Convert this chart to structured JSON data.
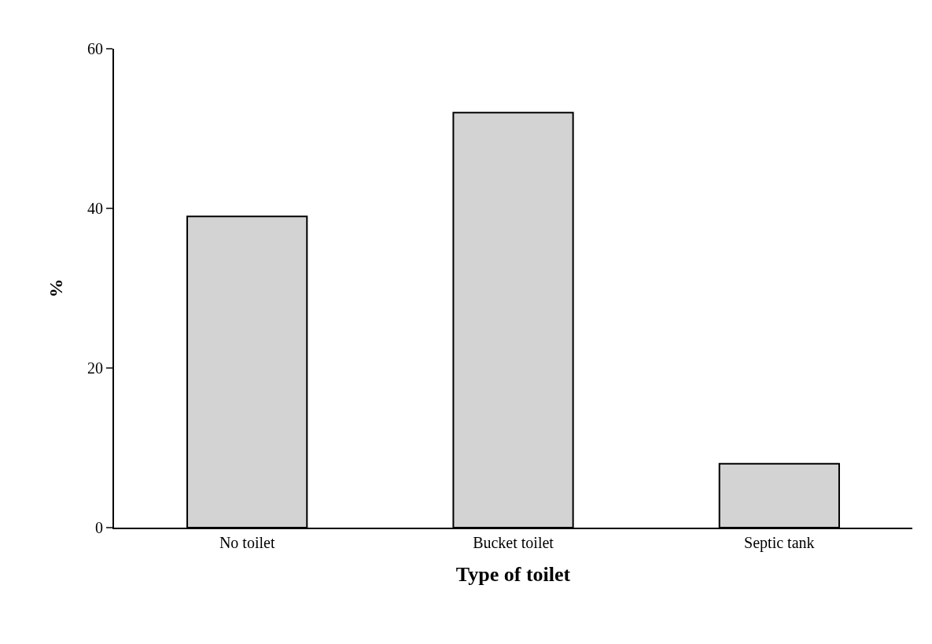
{
  "chart_data": {
    "type": "bar",
    "xlabel": "Type of toilet",
    "ylabel": "%",
    "categories": [
      "No toilet",
      "Bucket toilet",
      "Septic tank"
    ],
    "values": [
      39,
      52,
      8
    ],
    "color": "#d3d3d3",
    "ylim": [
      0,
      60
    ],
    "yticks": [
      0,
      20,
      40,
      60
    ],
    "grid": false
  }
}
